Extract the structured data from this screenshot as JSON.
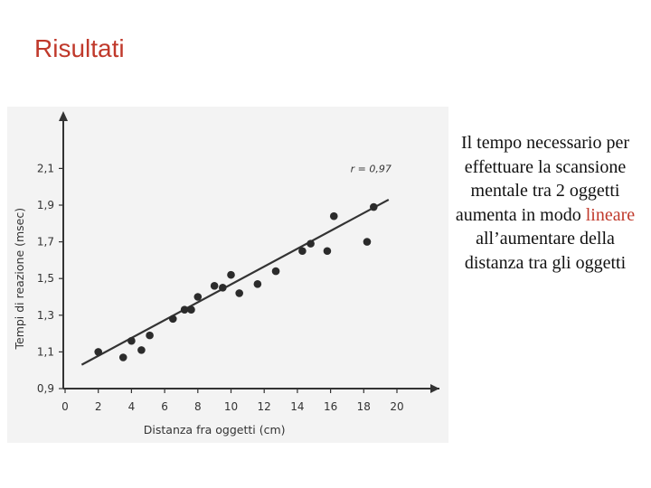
{
  "slide": {
    "title": "Risultati"
  },
  "caption": {
    "text_before": "Il tempo necessario per effettuare la scansione mentale tra 2 oggetti aumenta in modo",
    "highlight": "lineare",
    "text_after": "all’aumentare della distanza tra gli oggetti"
  },
  "colors": {
    "title": "#c0392b",
    "highlight": "#c0392b",
    "points": "#2b2b2b",
    "panel": "#f3f3f3"
  },
  "chart_data": {
    "type": "scatter",
    "xlabel": "Distanza fra oggetti (cm)",
    "ylabel": "Tempi di reazione (msec)",
    "xlim": [
      0,
      22
    ],
    "ylim": [
      0.9,
      2.25
    ],
    "x_ticks": [
      0,
      2,
      4,
      6,
      8,
      10,
      12,
      14,
      16,
      18,
      20
    ],
    "y_ticks": [
      0.9,
      1.1,
      1.3,
      1.5,
      1.7,
      1.9,
      2.1
    ],
    "y_tick_labels": [
      "0,9",
      "1,1",
      "1,3",
      "1,5",
      "1,7",
      "1,9",
      "2,1"
    ],
    "annotation": "r = 0,97",
    "points": [
      {
        "x": 2.0,
        "y": 1.1
      },
      {
        "x": 3.5,
        "y": 1.07
      },
      {
        "x": 4.0,
        "y": 1.16
      },
      {
        "x": 4.6,
        "y": 1.11
      },
      {
        "x": 5.1,
        "y": 1.19
      },
      {
        "x": 6.5,
        "y": 1.28
      },
      {
        "x": 7.2,
        "y": 1.33
      },
      {
        "x": 7.6,
        "y": 1.33
      },
      {
        "x": 8.0,
        "y": 1.4
      },
      {
        "x": 9.0,
        "y": 1.46
      },
      {
        "x": 9.5,
        "y": 1.45
      },
      {
        "x": 10.0,
        "y": 1.52
      },
      {
        "x": 10.5,
        "y": 1.42
      },
      {
        "x": 11.6,
        "y": 1.47
      },
      {
        "x": 12.7,
        "y": 1.54
      },
      {
        "x": 14.3,
        "y": 1.65
      },
      {
        "x": 14.8,
        "y": 1.69
      },
      {
        "x": 15.8,
        "y": 1.65
      },
      {
        "x": 16.2,
        "y": 1.84
      },
      {
        "x": 18.2,
        "y": 1.7
      },
      {
        "x": 18.6,
        "y": 1.89
      }
    ],
    "fit_line": {
      "x": [
        1.0,
        19.5
      ],
      "y": [
        1.03,
        1.93
      ]
    }
  }
}
